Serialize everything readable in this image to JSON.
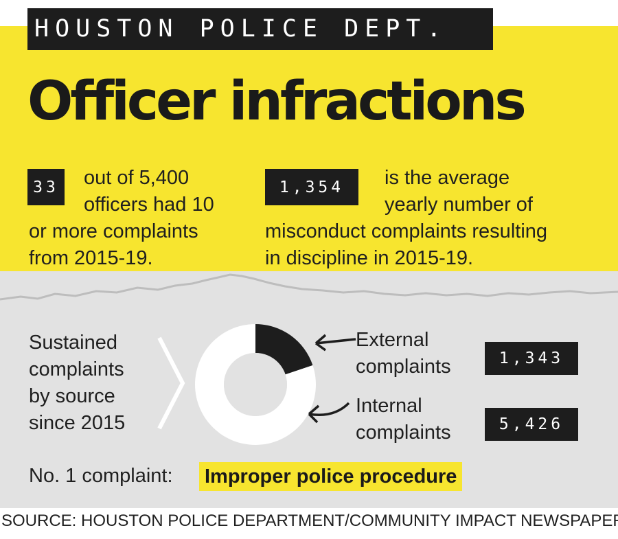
{
  "header": {
    "kicker": "HOUSTON POLICE DEPT.",
    "title": "Officer infractions"
  },
  "stats": [
    {
      "value": "33",
      "text_lines": [
        "out of 5,400",
        "officers had 10",
        "or more complaints",
        "from 2015-19."
      ]
    },
    {
      "value": "1,354",
      "text_lines": [
        "is the average",
        "yearly number of",
        "misconduct complaints resulting",
        "in discipline in 2015-19."
      ]
    }
  ],
  "chart_data": {
    "type": "pie",
    "title_lines": [
      "Sustained",
      "complaints",
      "by source",
      "since 2015"
    ],
    "slices": [
      {
        "name_lines": [
          "External",
          "complaints"
        ],
        "display": "1,343",
        "value": 1343,
        "color": "#1d1d1d"
      },
      {
        "name_lines": [
          "Internal",
          "complaints"
        ],
        "display": "5,426",
        "value": 5426,
        "color": "#ffffff"
      }
    ]
  },
  "top_complaint": {
    "label": "No. 1 complaint:",
    "value": "Improper police procedure"
  },
  "source": "SOURCE: HOUSTON POLICE DEPARTMENT/COMMUNITY IMPACT NEWSPAPER",
  "colors": {
    "yellow": "#f7e52f",
    "gray": "#e2e2e2",
    "dark": "#1d1d1d"
  }
}
